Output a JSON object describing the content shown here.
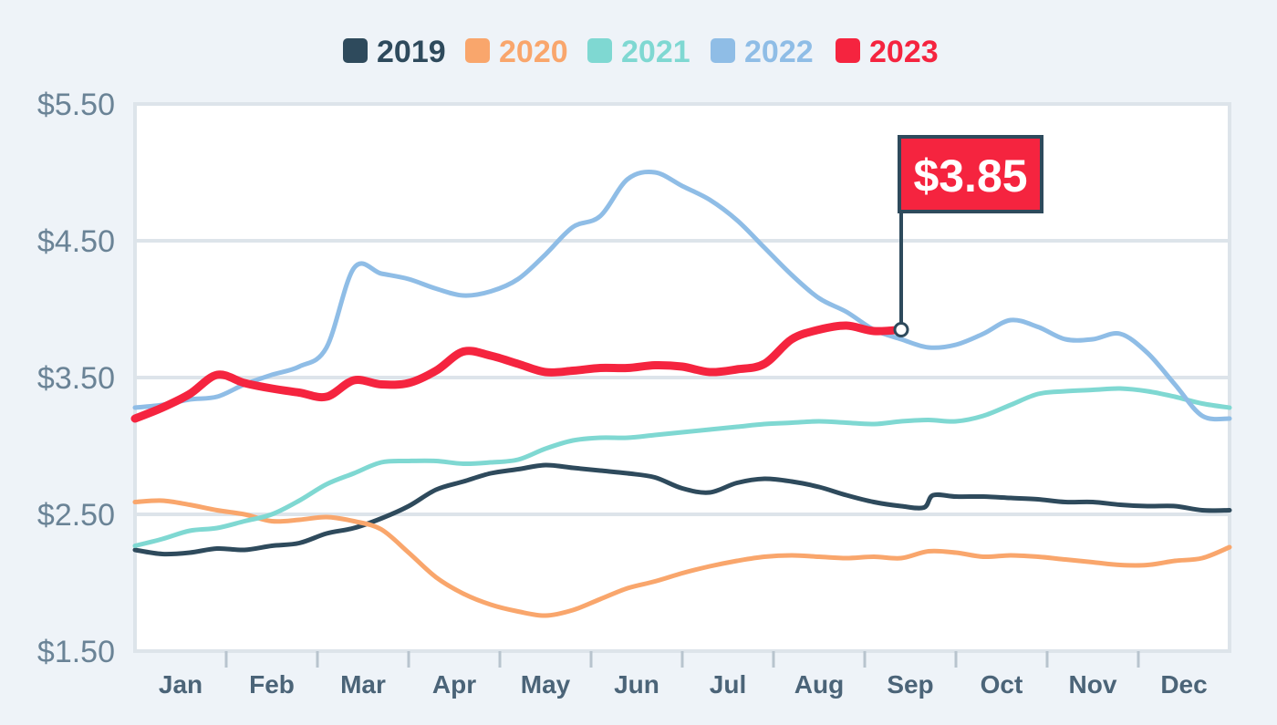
{
  "chart_data": {
    "type": "line",
    "title": "",
    "xlabel": "",
    "ylabel": "",
    "ylim": [
      1.5,
      5.5
    ],
    "y_ticks": [
      "$5.50",
      "$4.50",
      "$3.50",
      "$2.50",
      "$1.50"
    ],
    "y_tick_values": [
      5.5,
      4.5,
      3.5,
      2.5,
      1.5
    ],
    "categories": [
      "Jan",
      "Feb",
      "Mar",
      "Apr",
      "May",
      "Jun",
      "Jul",
      "Aug",
      "Sep",
      "Oct",
      "Nov",
      "Dec"
    ],
    "grid": true,
    "legend_position": "top-center",
    "series": [
      {
        "name": "2019",
        "color": "#2e4a5c",
        "x": [
          0,
          0.3,
          0.6,
          0.9,
          1.2,
          1.5,
          1.8,
          2.1,
          2.4,
          2.7,
          3.0,
          3.3,
          3.6,
          3.9,
          4.2,
          4.5,
          4.8,
          5.1,
          5.4,
          5.7,
          6.0,
          6.3,
          6.6,
          6.9,
          7.2,
          7.5,
          7.8,
          8.1,
          8.4,
          8.65,
          8.75,
          9.0,
          9.3,
          9.6,
          9.9,
          10.2,
          10.5,
          10.8,
          11.1,
          11.4,
          11.7,
          12.0
        ],
        "y": [
          2.24,
          2.21,
          2.22,
          2.25,
          2.24,
          2.27,
          2.29,
          2.36,
          2.4,
          2.47,
          2.56,
          2.68,
          2.74,
          2.8,
          2.83,
          2.86,
          2.84,
          2.82,
          2.8,
          2.77,
          2.69,
          2.66,
          2.73,
          2.76,
          2.74,
          2.7,
          2.64,
          2.59,
          2.56,
          2.55,
          2.64,
          2.63,
          2.63,
          2.62,
          2.61,
          2.59,
          2.59,
          2.57,
          2.56,
          2.56,
          2.53,
          2.53
        ]
      },
      {
        "name": "2020",
        "color": "#f9a66c",
        "x": [
          0,
          0.3,
          0.6,
          0.9,
          1.2,
          1.5,
          1.8,
          2.1,
          2.4,
          2.7,
          3.0,
          3.3,
          3.6,
          3.9,
          4.2,
          4.5,
          4.8,
          5.1,
          5.4,
          5.7,
          6.0,
          6.3,
          6.6,
          6.9,
          7.2,
          7.5,
          7.8,
          8.1,
          8.4,
          8.7,
          9.0,
          9.3,
          9.6,
          9.9,
          10.2,
          10.5,
          10.8,
          11.1,
          11.4,
          11.7,
          12.0
        ],
        "y": [
          2.59,
          2.6,
          2.57,
          2.53,
          2.5,
          2.45,
          2.46,
          2.48,
          2.45,
          2.39,
          2.22,
          2.04,
          1.92,
          1.84,
          1.79,
          1.76,
          1.8,
          1.88,
          1.96,
          2.01,
          2.07,
          2.12,
          2.16,
          2.19,
          2.2,
          2.19,
          2.18,
          2.19,
          2.18,
          2.23,
          2.22,
          2.19,
          2.2,
          2.19,
          2.17,
          2.15,
          2.13,
          2.13,
          2.16,
          2.18,
          2.26
        ]
      },
      {
        "name": "2021",
        "color": "#7fd8d2",
        "x": [
          0,
          0.3,
          0.6,
          0.9,
          1.2,
          1.5,
          1.8,
          2.1,
          2.4,
          2.7,
          3.0,
          3.3,
          3.6,
          3.9,
          4.2,
          4.5,
          4.8,
          5.1,
          5.4,
          5.7,
          6.0,
          6.3,
          6.6,
          6.9,
          7.2,
          7.5,
          7.8,
          8.1,
          8.4,
          8.7,
          9.0,
          9.3,
          9.6,
          9.9,
          10.2,
          10.5,
          10.8,
          11.1,
          11.4,
          11.7,
          12.0
        ],
        "y": [
          2.27,
          2.32,
          2.38,
          2.4,
          2.45,
          2.5,
          2.6,
          2.72,
          2.8,
          2.88,
          2.89,
          2.89,
          2.87,
          2.88,
          2.9,
          2.98,
          3.04,
          3.06,
          3.06,
          3.08,
          3.1,
          3.12,
          3.14,
          3.16,
          3.17,
          3.18,
          3.17,
          3.16,
          3.18,
          3.19,
          3.18,
          3.22,
          3.3,
          3.38,
          3.4,
          3.41,
          3.42,
          3.4,
          3.36,
          3.31,
          3.28
        ]
      },
      {
        "name": "2022",
        "color": "#8fbde6",
        "x": [
          0,
          0.3,
          0.6,
          0.9,
          1.2,
          1.5,
          1.8,
          2.1,
          2.4,
          2.7,
          3.0,
          3.3,
          3.6,
          3.9,
          4.2,
          4.5,
          4.8,
          5.1,
          5.4,
          5.7,
          6.0,
          6.3,
          6.6,
          6.9,
          7.2,
          7.5,
          7.8,
          8.1,
          8.4,
          8.7,
          9.0,
          9.3,
          9.6,
          9.9,
          10.2,
          10.5,
          10.8,
          11.1,
          11.4,
          11.7,
          12.0
        ],
        "y": [
          3.28,
          3.3,
          3.34,
          3.36,
          3.45,
          3.52,
          3.58,
          3.72,
          4.3,
          4.26,
          4.22,
          4.15,
          4.1,
          4.13,
          4.22,
          4.4,
          4.6,
          4.68,
          4.95,
          5.0,
          4.9,
          4.8,
          4.65,
          4.45,
          4.25,
          4.08,
          3.98,
          3.85,
          3.78,
          3.72,
          3.74,
          3.82,
          3.92,
          3.87,
          3.78,
          3.78,
          3.82,
          3.68,
          3.45,
          3.22,
          3.2
        ]
      },
      {
        "name": "2023",
        "color": "#f5243f",
        "x": [
          0,
          0.3,
          0.6,
          0.9,
          1.2,
          1.5,
          1.8,
          2.1,
          2.4,
          2.7,
          3.0,
          3.3,
          3.6,
          3.9,
          4.2,
          4.5,
          4.8,
          5.1,
          5.4,
          5.7,
          6.0,
          6.3,
          6.6,
          6.9,
          7.2,
          7.5,
          7.8,
          8.1,
          8.4
        ],
        "y": [
          3.2,
          3.28,
          3.38,
          3.52,
          3.46,
          3.42,
          3.39,
          3.36,
          3.48,
          3.45,
          3.46,
          3.55,
          3.69,
          3.66,
          3.6,
          3.54,
          3.55,
          3.57,
          3.57,
          3.59,
          3.58,
          3.54,
          3.56,
          3.6,
          3.78,
          3.85,
          3.88,
          3.84,
          3.85
        ]
      }
    ],
    "callout": {
      "label": "$3.85",
      "series": "2023",
      "x": 8.4,
      "y": 3.85
    }
  }
}
